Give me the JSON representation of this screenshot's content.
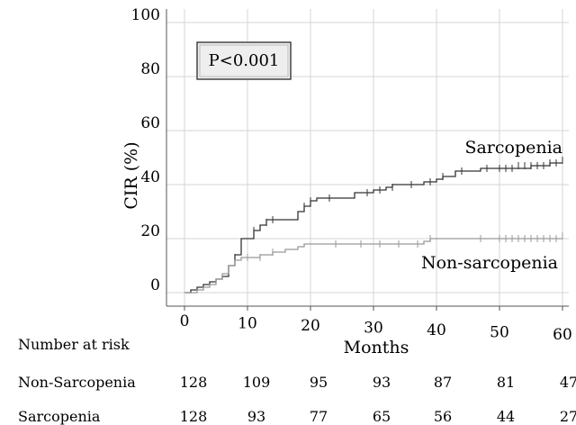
{
  "chart_data": {
    "type": "line",
    "step": true,
    "annotation": "P<0.001",
    "xlabel": "Months",
    "ylabel": "CIR (%)",
    "xlim": [
      0,
      60
    ],
    "ylim": [
      0,
      100
    ],
    "x_ticks": [
      "0",
      "10",
      "20",
      "30",
      "40",
      "50",
      "60"
    ],
    "y_ticks": [
      "0",
      "20",
      "40",
      "60",
      "80",
      "100"
    ],
    "grid": true,
    "series": [
      {
        "name": "Sarcopenia",
        "color": "#333333",
        "points": [
          [
            0,
            0
          ],
          [
            1,
            0
          ],
          [
            1,
            1
          ],
          [
            2,
            1
          ],
          [
            2,
            2
          ],
          [
            3,
            2
          ],
          [
            3,
            3
          ],
          [
            4,
            3
          ],
          [
            4,
            4
          ],
          [
            5,
            4
          ],
          [
            5,
            5
          ],
          [
            6,
            5
          ],
          [
            6,
            6
          ],
          [
            7,
            6
          ],
          [
            7,
            10
          ],
          [
            8,
            10
          ],
          [
            8,
            14
          ],
          [
            9,
            14
          ],
          [
            9,
            20
          ],
          [
            11,
            20
          ],
          [
            11,
            23
          ],
          [
            12,
            23
          ],
          [
            12,
            25
          ],
          [
            13,
            25
          ],
          [
            13,
            27
          ],
          [
            18,
            27
          ],
          [
            18,
            30
          ],
          [
            19,
            30
          ],
          [
            19,
            32
          ],
          [
            20,
            32
          ],
          [
            20,
            34
          ],
          [
            21,
            34
          ],
          [
            21,
            35
          ],
          [
            27,
            35
          ],
          [
            27,
            37
          ],
          [
            30,
            37
          ],
          [
            30,
            38
          ],
          [
            32,
            38
          ],
          [
            32,
            39
          ],
          [
            33,
            39
          ],
          [
            33,
            40
          ],
          [
            38,
            40
          ],
          [
            38,
            41
          ],
          [
            40,
            41
          ],
          [
            40,
            42
          ],
          [
            41,
            42
          ],
          [
            41,
            43
          ],
          [
            43,
            43
          ],
          [
            43,
            45
          ],
          [
            47,
            45
          ],
          [
            47,
            46
          ],
          [
            55,
            46
          ],
          [
            55,
            47
          ],
          [
            58,
            47
          ],
          [
            58,
            48
          ],
          [
            60,
            48
          ]
        ],
        "censored": [
          [
            8,
            13
          ],
          [
            11,
            23
          ],
          [
            13,
            26
          ],
          [
            14,
            27
          ],
          [
            19,
            32
          ],
          [
            20,
            34
          ],
          [
            23,
            35
          ],
          [
            29,
            37
          ],
          [
            31,
            38
          ],
          [
            33,
            39
          ],
          [
            36,
            40
          ],
          [
            39,
            41
          ],
          [
            41,
            43
          ],
          [
            44,
            45
          ],
          [
            48,
            46
          ],
          [
            50,
            46
          ],
          [
            51,
            46
          ],
          [
            52,
            46
          ],
          [
            53,
            47
          ],
          [
            54,
            47
          ],
          [
            55,
            47
          ],
          [
            56,
            47
          ],
          [
            57,
            47
          ],
          [
            58,
            48
          ],
          [
            59,
            48
          ],
          [
            60,
            49
          ]
        ],
        "label": "Sarcopenia"
      },
      {
        "name": "Non-sarcopenia",
        "color": "#999999",
        "points": [
          [
            0,
            0
          ],
          [
            2,
            0
          ],
          [
            2,
            1
          ],
          [
            3,
            1
          ],
          [
            3,
            2
          ],
          [
            4,
            2
          ],
          [
            4,
            3
          ],
          [
            5,
            3
          ],
          [
            5,
            5
          ],
          [
            6,
            5
          ],
          [
            6,
            7
          ],
          [
            7,
            7
          ],
          [
            7,
            10
          ],
          [
            8,
            10
          ],
          [
            8,
            12
          ],
          [
            9,
            12
          ],
          [
            9,
            13
          ],
          [
            12,
            13
          ],
          [
            12,
            14
          ],
          [
            14,
            14
          ],
          [
            14,
            15
          ],
          [
            16,
            15
          ],
          [
            16,
            16
          ],
          [
            18,
            16
          ],
          [
            18,
            17
          ],
          [
            19,
            17
          ],
          [
            19,
            18
          ],
          [
            38,
            18
          ],
          [
            38,
            19
          ],
          [
            39,
            19
          ],
          [
            39,
            20
          ],
          [
            60,
            20
          ]
        ],
        "censored": [
          [
            10,
            13
          ],
          [
            12,
            13
          ],
          [
            14,
            15
          ],
          [
            24,
            18
          ],
          [
            28,
            18
          ],
          [
            31,
            18
          ],
          [
            34,
            18
          ],
          [
            37,
            18
          ],
          [
            39,
            20
          ],
          [
            47,
            20
          ],
          [
            50,
            20
          ],
          [
            51,
            20
          ],
          [
            52,
            20
          ],
          [
            53,
            20
          ],
          [
            54,
            20
          ],
          [
            55,
            20
          ],
          [
            56,
            20
          ],
          [
            57,
            20
          ],
          [
            58,
            20
          ],
          [
            59,
            20
          ],
          [
            60,
            21
          ]
        ],
        "label": "Non-sarcopenia"
      }
    ],
    "risk_table": {
      "title": "Number at risk",
      "rows": [
        {
          "name": "Non-Sarcopenia",
          "values": [
            "128",
            "109",
            "95",
            "93",
            "87",
            "81",
            "47"
          ]
        },
        {
          "name": "Sarcopenia",
          "values": [
            "128",
            "93",
            "77",
            "65",
            "56",
            "44",
            "27"
          ]
        }
      ]
    }
  }
}
